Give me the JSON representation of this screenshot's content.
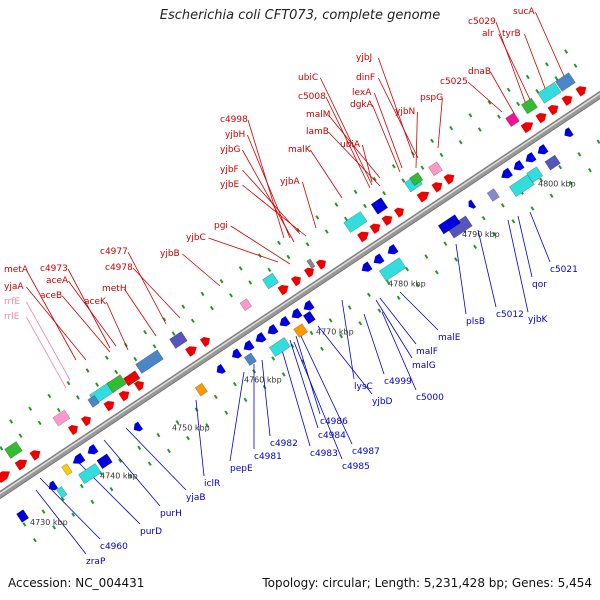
{
  "title": "Escherichia coli CFT073, complete genome",
  "footer": {
    "accession_label": "Accession: ",
    "accession": "NC_004431",
    "topology_label": "Topology: ",
    "topology": "circular",
    "length_label": "; Length: ",
    "length": "5,231,428 bp",
    "genes_label": "; Genes: ",
    "genes": "5,454"
  },
  "colors": {
    "red_gene": "#ee0000",
    "blue_gene": "#0000dd",
    "cyan_gene": "#33dddd",
    "steelblue_gene": "#4a86c8",
    "slate_gene": "#5555bb",
    "pink_gene": "#ff99cc",
    "green_gene": "#33bb33",
    "orange_gene": "#ff9900",
    "magenta_gene": "#ee1199",
    "label_red": "#cc0000",
    "label_blue": "#0000cc",
    "label_pink": "#ee88aa",
    "tick_green": "#229922",
    "backbone": "#999999"
  },
  "ruler": [
    {
      "label": "4730 kbp"
    },
    {
      "label": "4740 kbp"
    },
    {
      "label": "4750 kbp"
    },
    {
      "label": "4760 kbp"
    },
    {
      "label": "4770 kbp"
    },
    {
      "label": "4780 kbp"
    },
    {
      "label": "4790 kbp"
    },
    {
      "label": "4800 kbp"
    }
  ],
  "labels_top": [
    {
      "text": "sucA"
    },
    {
      "text": "c5029"
    },
    {
      "text": "alr"
    },
    {
      "text": "tyrB"
    },
    {
      "text": "dnaB"
    },
    {
      "text": "c5025"
    },
    {
      "text": "yjbJ"
    },
    {
      "text": "ubiC"
    },
    {
      "text": "dinF"
    },
    {
      "text": "c5008"
    },
    {
      "text": "lexA"
    },
    {
      "text": "dgkA"
    },
    {
      "text": "pspG"
    },
    {
      "text": "yjbN"
    },
    {
      "text": "malM"
    },
    {
      "text": "lamB"
    },
    {
      "text": "ubiA"
    },
    {
      "text": "c4998"
    },
    {
      "text": "yjbH"
    },
    {
      "text": "malK"
    },
    {
      "text": "yjbG"
    },
    {
      "text": "yjbF"
    },
    {
      "text": "yjbA"
    },
    {
      "text": "yjbE"
    },
    {
      "text": "pgi"
    },
    {
      "text": "yjbC"
    },
    {
      "text": "c4977"
    },
    {
      "text": "yjbB"
    },
    {
      "text": "c4978"
    },
    {
      "text": "metA"
    },
    {
      "text": "c4973"
    },
    {
      "text": "aceA"
    },
    {
      "text": "metH"
    },
    {
      "text": "yjaA"
    },
    {
      "text": "aceB"
    },
    {
      "text": "aceK"
    },
    {
      "text": "rrfE",
      "pink": true
    },
    {
      "text": "rrlE",
      "pink": true
    }
  ],
  "labels_bottom": [
    {
      "text": "c5021"
    },
    {
      "text": "qor"
    },
    {
      "text": "c5012"
    },
    {
      "text": "yjbK"
    },
    {
      "text": "plsB"
    },
    {
      "text": "malE"
    },
    {
      "text": "malF"
    },
    {
      "text": "malG"
    },
    {
      "text": "lysC"
    },
    {
      "text": "c4999"
    },
    {
      "text": "c5000"
    },
    {
      "text": "yjbD"
    },
    {
      "text": "c4986"
    },
    {
      "text": "c4984"
    },
    {
      "text": "c4987"
    },
    {
      "text": "c4985"
    },
    {
      "text": "c4983"
    },
    {
      "text": "c4982"
    },
    {
      "text": "c4981"
    },
    {
      "text": "pepE"
    },
    {
      "text": "iclR"
    },
    {
      "text": "yjaB"
    },
    {
      "text": "purH"
    },
    {
      "text": "purD"
    },
    {
      "text": "c4960"
    },
    {
      "text": "zraP"
    }
  ]
}
